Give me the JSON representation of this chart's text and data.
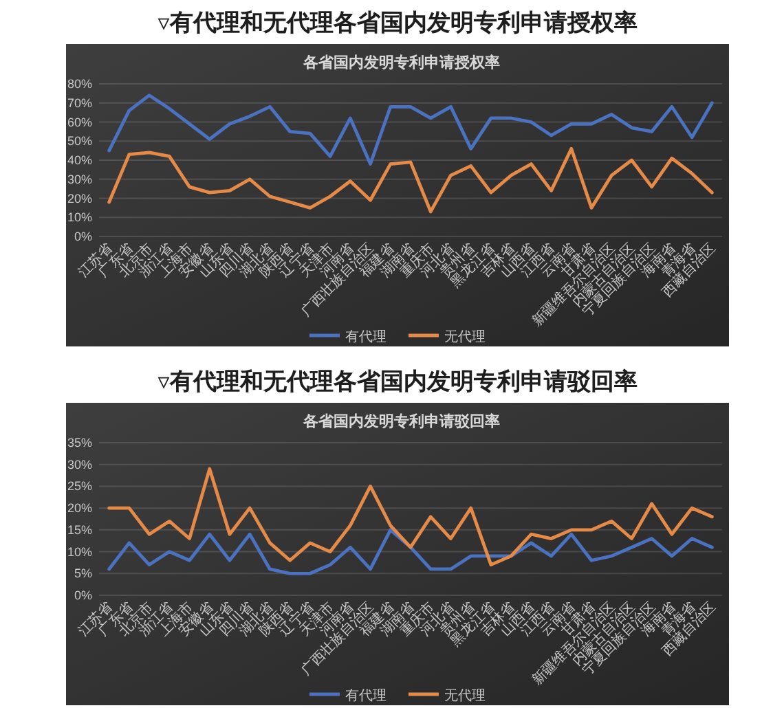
{
  "chart_data": [
    {
      "type": "line",
      "title": "▿有代理和无代理各省国内发明专利申请授权率",
      "subtitle": "各省国内发明专利申请授权率",
      "categories": [
        "江苏省",
        "广东省",
        "北京市",
        "浙江省",
        "上海市",
        "安徽省",
        "山东省",
        "四川省",
        "湖北省",
        "陕西省",
        "辽宁省",
        "天津市",
        "河南省",
        "广西壮族自治区",
        "福建省",
        "湖南省",
        "重庆市",
        "河北省",
        "贵州省",
        "黑龙江省",
        "吉林省",
        "山西省",
        "江西省",
        "云南省",
        "甘肃省",
        "新疆维吾尔自治区",
        "内蒙古自治区",
        "宁夏回族自治区",
        "海南省",
        "青海省",
        "西藏自治区"
      ],
      "series": [
        {
          "name": "有代理",
          "color": "#4a72c0",
          "values": [
            45,
            66,
            74,
            67,
            59,
            51,
            59,
            63,
            68,
            55,
            54,
            42,
            62,
            38,
            68,
            68,
            62,
            68,
            46,
            62,
            62,
            60,
            53,
            59,
            59,
            64,
            57,
            55,
            68,
            52,
            70
          ]
        },
        {
          "name": "无代理",
          "color": "#e68a48",
          "values": [
            18,
            43,
            44,
            42,
            26,
            23,
            24,
            30,
            21,
            18,
            15,
            21,
            29,
            19,
            38,
            39,
            13,
            32,
            37,
            23,
            32,
            38,
            24,
            46,
            15,
            32,
            40,
            26,
            41,
            33,
            23
          ]
        }
      ],
      "ylim": [
        0,
        80
      ],
      "yticks": [
        {
          "value": 0,
          "label": "0%"
        },
        {
          "value": 10,
          "label": "10%"
        },
        {
          "value": 20,
          "label": "20%"
        },
        {
          "value": 30,
          "label": "30%"
        },
        {
          "value": 40,
          "label": "40%"
        },
        {
          "value": 50,
          "label": "50%"
        },
        {
          "value": 60,
          "label": "60%"
        },
        {
          "value": 70,
          "label": "70%"
        },
        {
          "value": 80,
          "label": "80%"
        }
      ],
      "grid": "y",
      "legend": "bottom",
      "line_style": "solid"
    },
    {
      "type": "line",
      "title": "▿有代理和无代理各省国内发明专利申请驳回率",
      "subtitle": "各省国内发明专利申请驳回率",
      "categories": [
        "江苏省",
        "广东省",
        "北京市",
        "浙江省",
        "上海市",
        "安徽省",
        "山东省",
        "四川省",
        "湖北省",
        "陕西省",
        "辽宁省",
        "天津市",
        "河南省",
        "广西壮族自治区",
        "福建省",
        "湖南省",
        "重庆市",
        "河北省",
        "贵州省",
        "黑龙江省",
        "吉林省",
        "山西省",
        "江西省",
        "云南省",
        "甘肃省",
        "新疆维吾尔自治区",
        "内蒙古自治区",
        "宁夏回族自治区",
        "海南省",
        "青海省",
        "西藏自治区"
      ],
      "series": [
        {
          "name": "有代理",
          "color": "#4a72c0",
          "values": [
            6,
            12,
            7,
            10,
            8,
            14,
            8,
            14,
            6,
            5,
            5,
            7,
            11,
            6,
            15,
            11,
            6,
            6,
            9,
            9,
            9,
            12,
            9,
            14,
            8,
            9,
            11,
            13,
            9,
            13,
            11
          ]
        },
        {
          "name": "无代理",
          "color": "#e68a48",
          "values": [
            20,
            20,
            14,
            17,
            13,
            29,
            14,
            20,
            12,
            8,
            12,
            10,
            16,
            25,
            16,
            11,
            18,
            13,
            20,
            7,
            9,
            14,
            13,
            15,
            15,
            17,
            13,
            21,
            14,
            20,
            18
          ]
        }
      ],
      "ylim": [
        0,
        35
      ],
      "yticks": [
        {
          "value": 0,
          "label": "0%"
        },
        {
          "value": 5,
          "label": "5%"
        },
        {
          "value": 10,
          "label": "10%"
        },
        {
          "value": 15,
          "label": "15%"
        },
        {
          "value": 20,
          "label": "20%"
        },
        {
          "value": 25,
          "label": "25%"
        },
        {
          "value": 30,
          "label": "30%"
        },
        {
          "value": 35,
          "label": "35%"
        }
      ],
      "grid": "y",
      "legend": "bottom",
      "line_style": "solid"
    }
  ]
}
